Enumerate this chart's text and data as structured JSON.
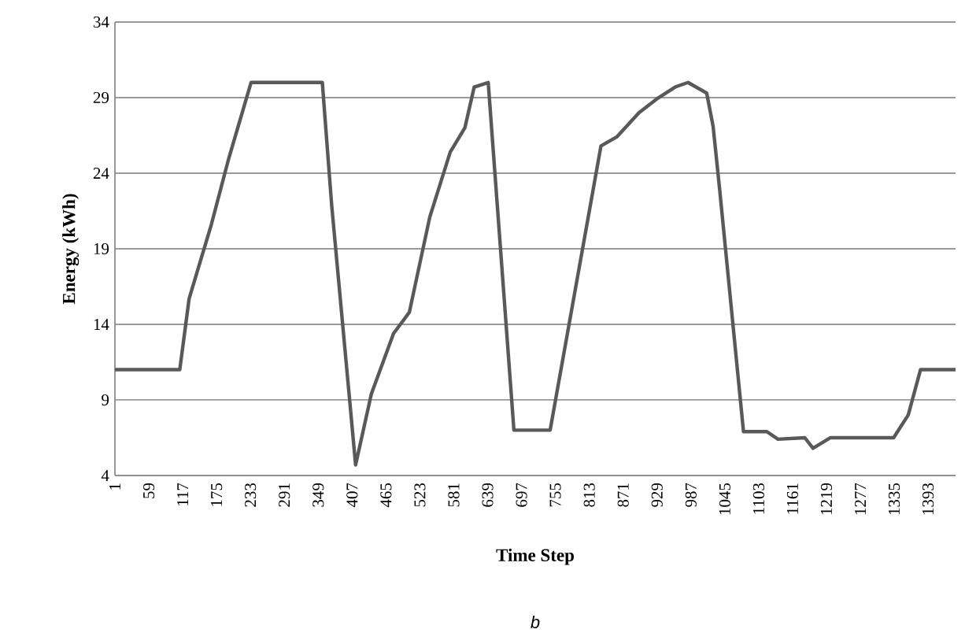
{
  "chart_data": {
    "type": "line",
    "xlabel": "Time Step",
    "ylabel": "Energy (kWh)",
    "annotations": [
      "b"
    ],
    "x": [
      1,
      112,
      128,
      166,
      196,
      234,
      356,
      372,
      413,
      440,
      478,
      505,
      540,
      575,
      600,
      616,
      640,
      684,
      746,
      833,
      860,
      898,
      928,
      960,
      982,
      1014,
      1025,
      1036,
      1077,
      1117,
      1136,
      1182,
      1196,
      1226,
      1334,
      1359,
      1380,
      1440
    ],
    "series": [
      {
        "color": "#595959",
        "values": [
          11,
          11,
          15.7,
          20.6,
          25,
          30,
          30,
          21.9,
          4.7,
          9.4,
          13.4,
          14.8,
          21.1,
          25.4,
          27,
          29.7,
          30,
          7,
          7,
          25.8,
          26.4,
          28,
          28.9,
          29.7,
          30,
          29.3,
          27.1,
          23,
          6.9,
          6.9,
          6.4,
          6.5,
          5.8,
          6.5,
          6.5,
          8,
          11,
          11
        ]
      }
    ],
    "xlim": [
      1,
      1440
    ],
    "ylim": [
      4,
      34
    ],
    "xticks": [
      1,
      59,
      117,
      175,
      233,
      291,
      349,
      407,
      465,
      523,
      581,
      639,
      697,
      755,
      813,
      871,
      929,
      987,
      1045,
      1103,
      1161,
      1219,
      1277,
      1335,
      1393
    ],
    "yticks": [
      4,
      9,
      14,
      19,
      24,
      29,
      34
    ],
    "grid": "y",
    "marker": "none",
    "line_style": "solid"
  }
}
